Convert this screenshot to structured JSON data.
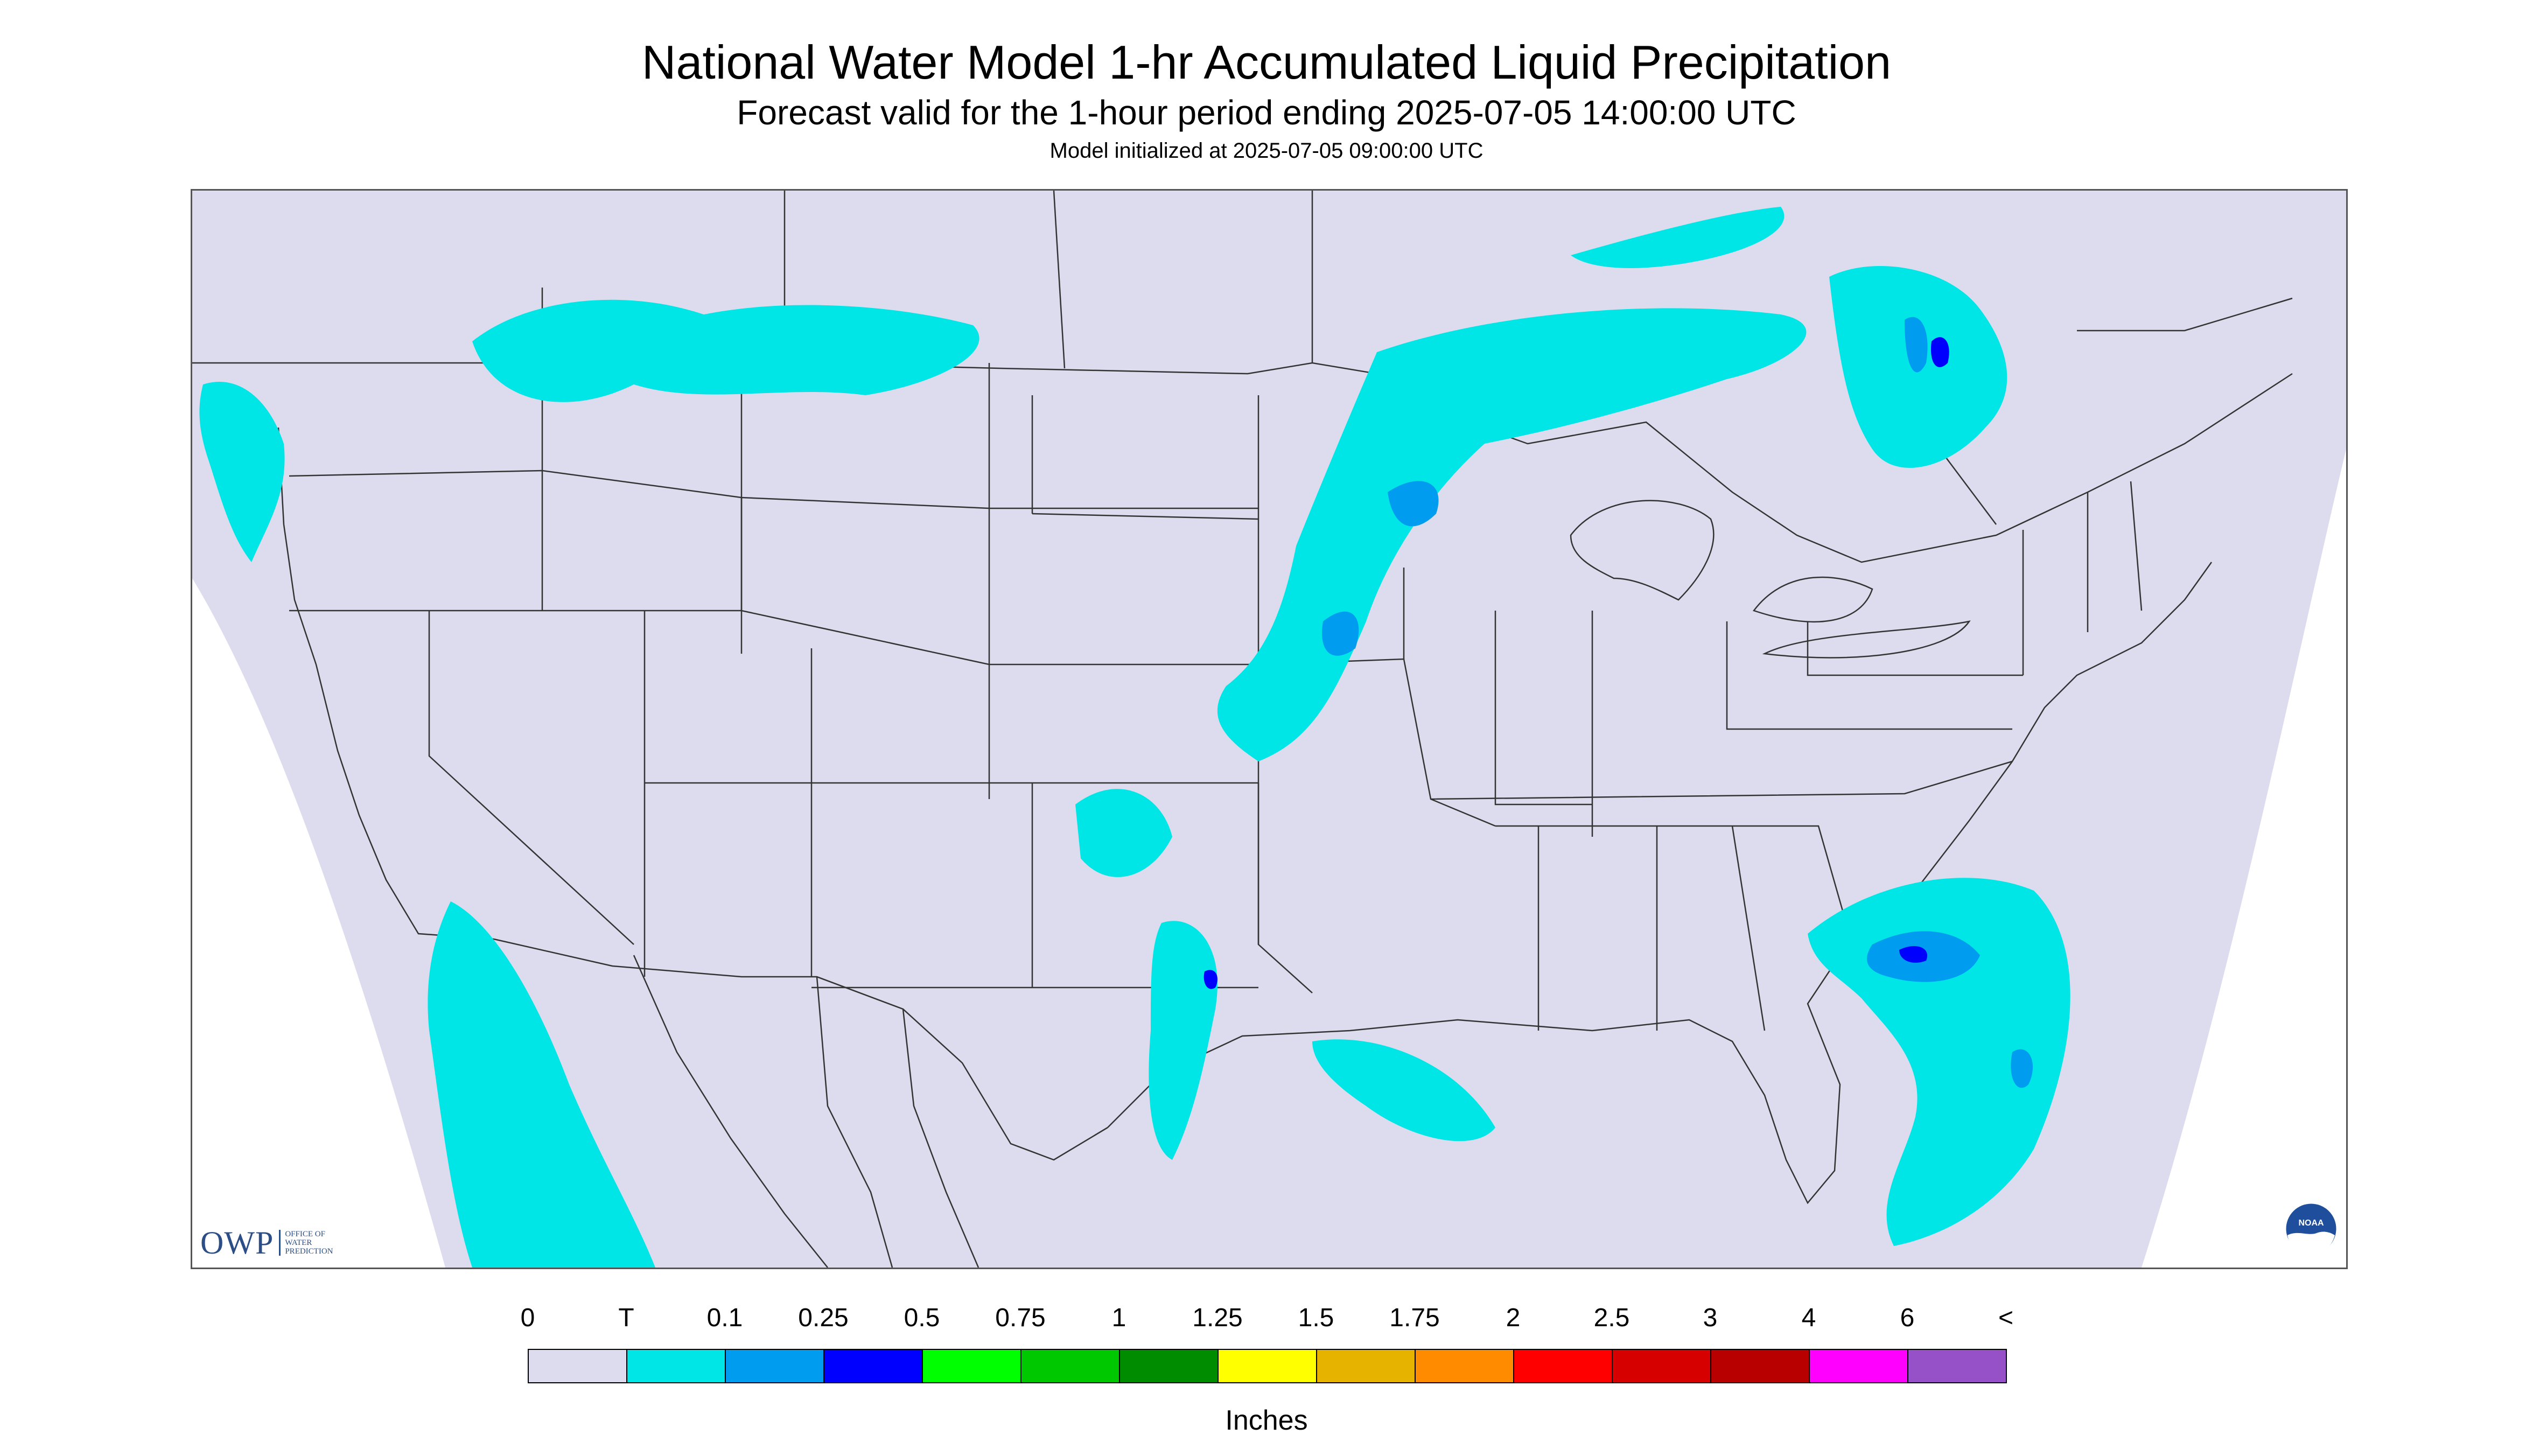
{
  "header": {
    "title": "National Water Model 1-hr Accumulated Liquid Precipitation",
    "subtitle": "Forecast valid for the 1-hour period ending 2025-07-05 14:00:00 UTC",
    "init_line": "Model initialized at 2025-07-05 09:00:00 UTC"
  },
  "legend": {
    "units": "Inches",
    "tick_labels": [
      "0",
      "T",
      "0.1",
      "0.25",
      "0.5",
      "0.75",
      "1",
      "1.25",
      "1.5",
      "1.75",
      "2",
      "2.5",
      "3",
      "4",
      "6",
      "<"
    ],
    "colors": [
      "#dcdcee",
      "#00e5e5",
      "#009cf0",
      "#0000ff",
      "#00ff00",
      "#00c800",
      "#008c00",
      "#ffff00",
      "#e6b400",
      "#ff8c00",
      "#ff0000",
      "#d70000",
      "#b90000",
      "#ff00ff",
      "#9650c8"
    ]
  },
  "logos": {
    "owp_mark": "OWP",
    "owp_text": "OFFICE OF WATER PREDICTION",
    "noaa_text": "NOAA"
  },
  "map": {
    "background_color": "#dcdcee",
    "outside_color": "#ffffff",
    "precip_light_color": "#00e5e5",
    "precip_medium_color": "#009cf0",
    "precip_heavy_color": "#0000ff",
    "boundary_color": "#333333"
  }
}
